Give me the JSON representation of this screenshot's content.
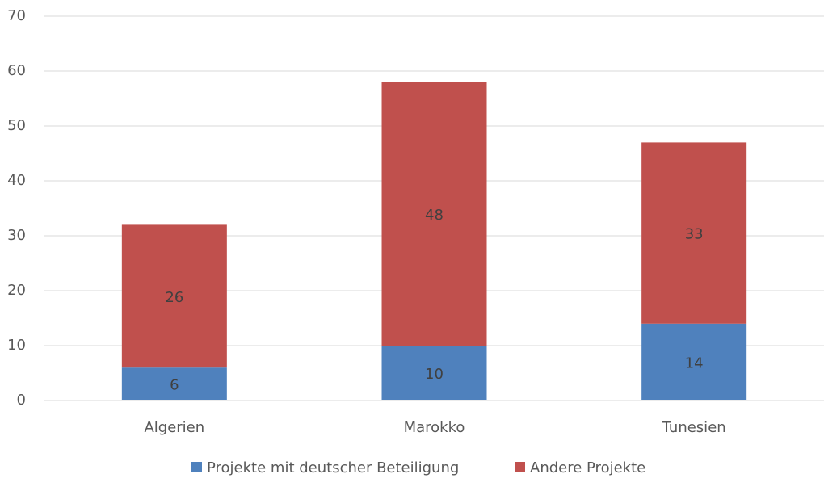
{
  "chart_data": {
    "type": "bar",
    "stacked": true,
    "categories": [
      "Algerien",
      "Marokko",
      "Tunesien"
    ],
    "series": [
      {
        "name": "Projekte mit deutscher Beteiligung",
        "color": "#4f81bd",
        "values": [
          6,
          10,
          14
        ]
      },
      {
        "name": "Andere Projekte",
        "color": "#c0504d",
        "values": [
          26,
          48,
          33
        ]
      }
    ],
    "ylim": [
      0,
      70
    ],
    "yticks": [
      0,
      10,
      20,
      30,
      40,
      50,
      60,
      70
    ],
    "grid": true,
    "legend": "bottom"
  }
}
